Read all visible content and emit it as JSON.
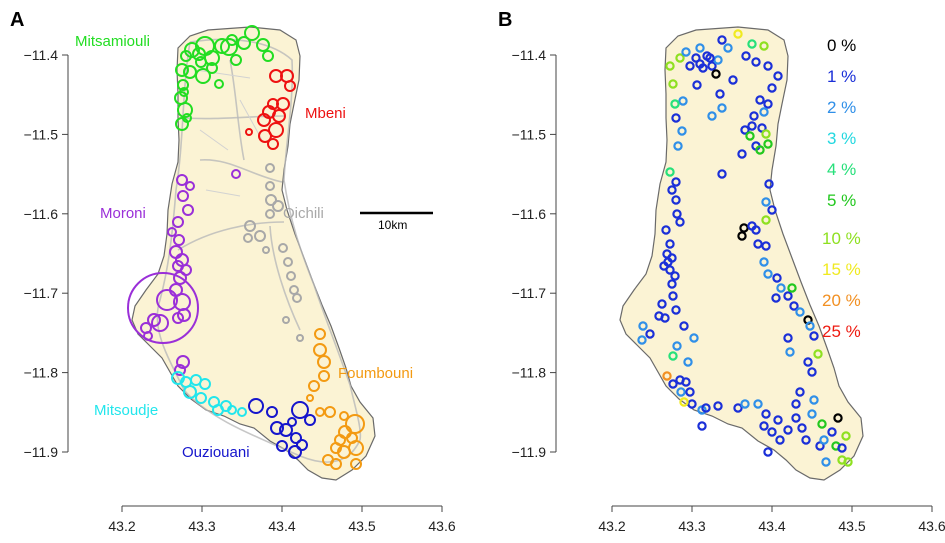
{
  "panel_a": {
    "letter": "A",
    "regions": [
      {
        "name": "Mitsamiouli",
        "color": "#22dd22"
      },
      {
        "name": "Mbeni",
        "color": "#ee1111"
      },
      {
        "name": "Oichili",
        "color": "#a8a8a8"
      },
      {
        "name": "Moroni",
        "color": "#9a2fd8"
      },
      {
        "name": "Foumbouni",
        "color": "#f39a12"
      },
      {
        "name": "Mitsoudje",
        "color": "#22e6ec"
      },
      {
        "name": "Ouziouani",
        "color": "#1515cc"
      }
    ],
    "scale_bar": "10km"
  },
  "panel_b": {
    "letter": "B",
    "legend": [
      {
        "label": "0 %",
        "color": "#000000"
      },
      {
        "label": "1 %",
        "color": "#1a2fd8"
      },
      {
        "label": "2 %",
        "color": "#2f8fe8"
      },
      {
        "label": "3 %",
        "color": "#22d8e0"
      },
      {
        "label": "4 %",
        "color": "#26e07a"
      },
      {
        "label": "5 %",
        "color": "#22c81e"
      },
      {
        "label": "10 %",
        "color": "#8ee020"
      },
      {
        "label": "15 %",
        "color": "#f0ea20"
      },
      {
        "label": "20 %",
        "color": "#f29022"
      },
      {
        "label": "25 %",
        "color": "#ee1a10"
      }
    ]
  },
  "axes": {
    "x_ticks": [
      "43.2",
      "43.3",
      "43.4",
      "43.5",
      "43.6"
    ],
    "y_ticks": [
      "−11.4",
      "−11.5",
      "−11.6",
      "−11.7",
      "−11.8",
      "−11.9"
    ]
  },
  "colors": {
    "island_fill": "#fbf3d4",
    "coast": "#6a6a6a",
    "roads": "#b9b9b9"
  }
}
